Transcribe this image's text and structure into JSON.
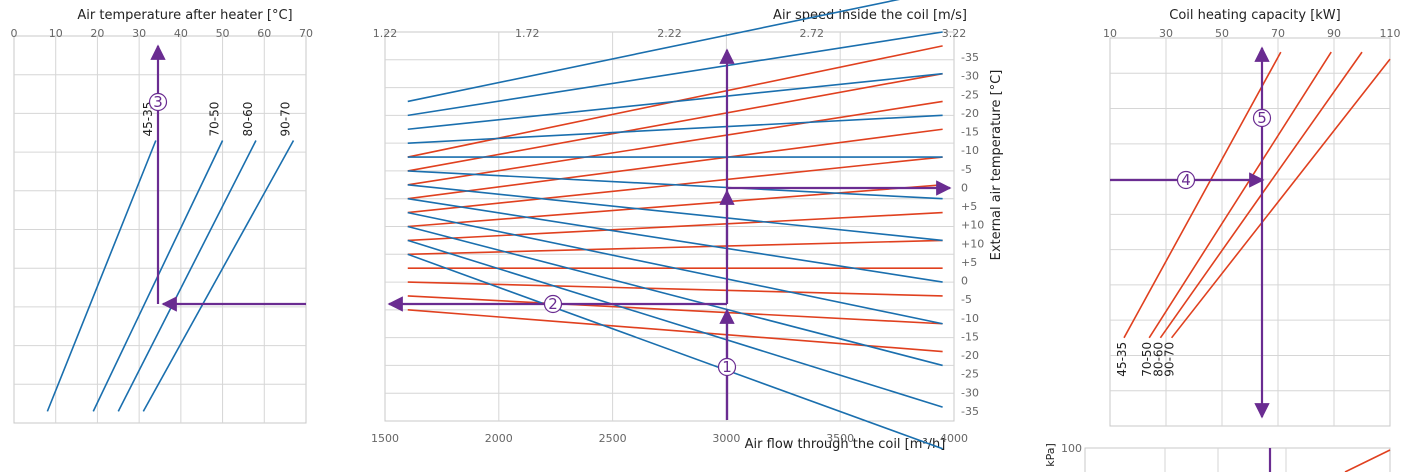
{
  "chart_data": [
    {
      "id": "temp_after_heater",
      "type": "line",
      "title": "Air temperature after heater [°C]",
      "xlabel": "Air temperature after heater [°C]",
      "xlim": [
        0,
        70
      ],
      "xticks": [
        0,
        10,
        20,
        30,
        40,
        50,
        60,
        70
      ],
      "rows": 10,
      "series": [
        {
          "name": "45-35",
          "color": "#1a6fae",
          "points": [
            [
              8,
              0.3
            ],
            [
              34,
              7.3
            ]
          ]
        },
        {
          "name": "70-50",
          "color": "#1a6fae",
          "points": [
            [
              19,
              0.3
            ],
            [
              50,
              7.3
            ]
          ]
        },
        {
          "name": "80-60",
          "color": "#1a6fae",
          "points": [
            [
              25,
              0.3
            ],
            [
              58,
              7.3
            ]
          ]
        },
        {
          "name": "90-70",
          "color": "#1a6fae",
          "points": [
            [
              31,
              0.3
            ],
            [
              67,
              7.3
            ]
          ]
        }
      ]
    },
    {
      "id": "main_chart",
      "type": "line",
      "title": "Air speed inside the coil [m/s]",
      "xlabel": "Air flow through the coil [m³/h]",
      "ylabel": "External air temperature [°C]",
      "xlim": [
        1500,
        4000
      ],
      "xticks": [
        1500,
        2000,
        2500,
        3000,
        3500,
        4000
      ],
      "top_ticks": [
        "1.22",
        "1.72",
        "2.22",
        "2.72",
        "3.22"
      ],
      "right_ticks": [
        "-35",
        "-30",
        "-25",
        "-20",
        "-15",
        "-10",
        "-5",
        "0",
        "+5",
        "+10",
        "+10",
        "+5",
        "0",
        "-5",
        "-10",
        "-15",
        "-20",
        "-25",
        "-30",
        "-35"
      ],
      "red_lines_y": [
        [
          9.5,
          13.5
        ],
        [
          9.0,
          12.5
        ],
        [
          8.5,
          11.5
        ],
        [
          8.0,
          10.5
        ],
        [
          7.5,
          9.5
        ],
        [
          7.0,
          8.5
        ],
        [
          6.5,
          7.5
        ],
        [
          6.0,
          6.5
        ],
        [
          5.5,
          5.5
        ],
        [
          5.0,
          4.5
        ],
        [
          4.5,
          3.5
        ],
        [
          4.0,
          2.5
        ]
      ],
      "blue_lines_y": [
        [
          11.5,
          9.0
        ],
        [
          11.0,
          7.5
        ],
        [
          10.5,
          6.0
        ],
        [
          10.0,
          4.5
        ],
        [
          9.5,
          3.0
        ],
        [
          9.0,
          1.5
        ],
        [
          8.5,
          0.0
        ],
        [
          8.0,
          -1.5
        ],
        [
          7.5,
          -3.0
        ],
        [
          7.0,
          -4.5
        ],
        [
          6.5,
          -6.0
        ],
        [
          6.0,
          -7.5
        ]
      ]
    },
    {
      "id": "heating_capacity",
      "type": "line",
      "title": "Coil heating capacity [kW]",
      "xlim": [
        10,
        110
      ],
      "xticks": [
        10,
        30,
        50,
        70,
        90,
        110
      ],
      "rows": 11,
      "series": [
        {
          "name": "45-35",
          "color": "#e0401f",
          "points": [
            [
              15,
              2.5
            ],
            [
              71,
              10.6
            ]
          ]
        },
        {
          "name": "70-50",
          "color": "#e0401f",
          "points": [
            [
              24,
              2.5
            ],
            [
              89,
              10.6
            ]
          ]
        },
        {
          "name": "80-60",
          "color": "#e0401f",
          "points": [
            [
              28,
              2.5
            ],
            [
              100,
              10.6
            ]
          ]
        },
        {
          "name": "90-70",
          "color": "#e0401f",
          "points": [
            [
              32,
              2.5
            ],
            [
              110,
              10.4
            ]
          ]
        }
      ]
    },
    {
      "id": "pressure_drop",
      "type": "line",
      "ytick_top": "100",
      "ylabel_fragment": "kPa]"
    }
  ],
  "markers": [
    "1",
    "2",
    "3",
    "4",
    "5"
  ]
}
